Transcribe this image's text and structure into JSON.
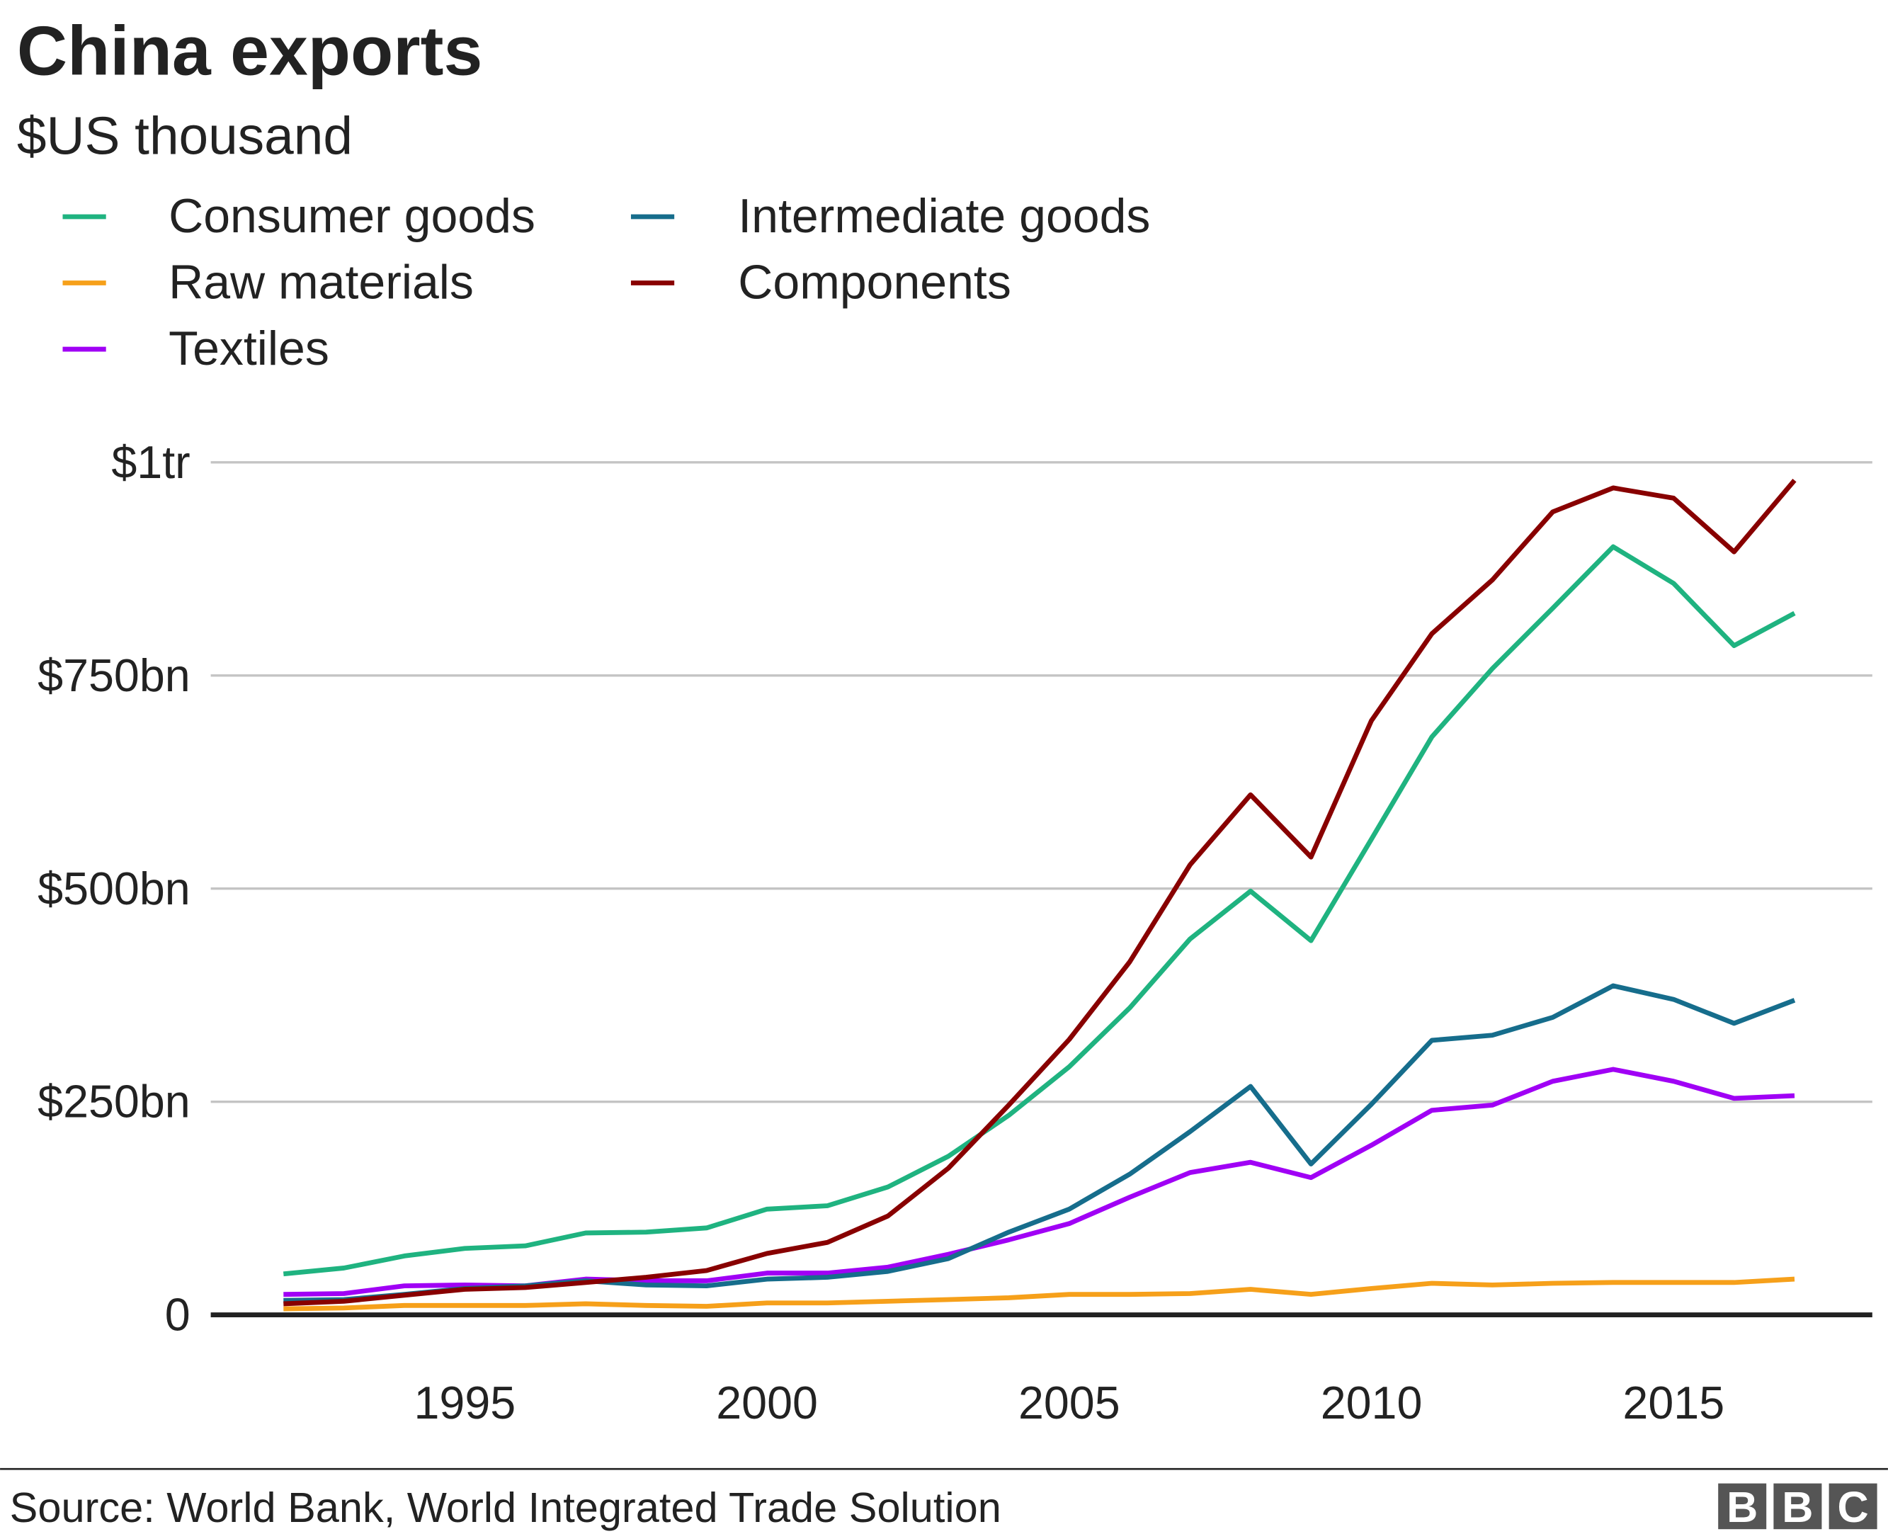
{
  "chart_data": {
    "type": "line",
    "title": "China exports",
    "subtitle": "$US thousand",
    "x": [
      1992,
      1993,
      1994,
      1995,
      1996,
      1997,
      1998,
      1999,
      2000,
      2001,
      2002,
      2003,
      2004,
      2005,
      2006,
      2007,
      2008,
      2009,
      2010,
      2011,
      2012,
      2013,
      2014,
      2015,
      2016,
      2017
    ],
    "xticks": [
      1995,
      2000,
      2005,
      2010,
      2015
    ],
    "xtick_labels": [
      "1995",
      "2000",
      "2005",
      "2010",
      "2015"
    ],
    "xlim": [
      1989.7,
      2018.3
    ],
    "yunit": "$bn",
    "ylim": [
      0,
      1000
    ],
    "yticks": [
      0,
      250,
      500,
      750,
      1000
    ],
    "ytick_labels": [
      "0",
      "$250bn",
      "$500bn",
      "$750bn",
      "$1tr"
    ],
    "grid": "horizontal",
    "legend_placement": "top-left",
    "series": [
      {
        "name": "Consumer goods",
        "color": "#1fb380",
        "values": [
          48,
          55,
          69,
          78,
          81,
          96,
          97,
          102,
          124,
          128,
          150,
          186,
          234,
          291,
          360,
          441,
          497,
          439,
          558,
          678,
          758,
          829,
          901,
          858,
          785,
          823
        ]
      },
      {
        "name": "Raw materials",
        "color": "#f6a01a",
        "values": [
          7,
          8,
          11,
          11,
          11,
          13,
          11,
          10,
          14,
          14,
          16,
          18,
          20,
          24,
          24,
          25,
          30,
          24,
          31,
          37,
          35,
          37,
          38,
          38,
          38,
          42
        ]
      },
      {
        "name": "Textiles",
        "color": "#a000f5",
        "values": [
          24,
          25,
          34,
          35,
          34,
          42,
          40,
          40,
          49,
          49,
          56,
          71,
          88,
          107,
          138,
          167,
          179,
          161,
          199,
          240,
          246,
          274,
          288,
          274,
          254,
          257
        ]
      },
      {
        "name": "Intermediate goods",
        "color": "#166d8c",
        "values": [
          17,
          18,
          24,
          31,
          34,
          40,
          35,
          34,
          42,
          44,
          51,
          66,
          97,
          124,
          165,
          215,
          268,
          177,
          247,
          322,
          328,
          349,
          386,
          370,
          342,
          369
        ]
      },
      {
        "name": "Components",
        "color": "#880000",
        "values": [
          13,
          16,
          23,
          30,
          32,
          38,
          44,
          52,
          72,
          85,
          116,
          172,
          246,
          323,
          414,
          528,
          610,
          537,
          697,
          799,
          862,
          942,
          970,
          958,
          895,
          979
        ]
      }
    ]
  },
  "footer": {
    "source": "Source:  World Bank, World Integrated Trade Solution",
    "logo": [
      "B",
      "B",
      "C"
    ]
  }
}
